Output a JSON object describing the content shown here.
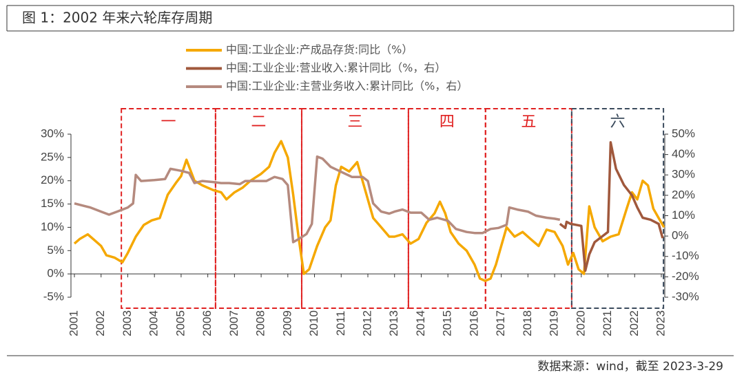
{
  "chart_data": {
    "type": "line",
    "title": "图 1：2002 年来六轮库存周期",
    "source": "数据来源：wind，截至 2023-3-29",
    "xlim": [
      2001,
      2023
    ],
    "xticks": [
      2001,
      2002,
      2003,
      2004,
      2005,
      2006,
      2007,
      2008,
      2009,
      2010,
      2011,
      2012,
      2013,
      2014,
      2015,
      2016,
      2017,
      2018,
      2019,
      2020,
      2021,
      2022,
      2023
    ],
    "ylim": [
      -5,
      30
    ],
    "yticks": [
      {
        "value": -5,
        "label": "-5%"
      },
      {
        "value": 0,
        "label": "0%"
      },
      {
        "value": 5,
        "label": "5%"
      },
      {
        "value": 10,
        "label": "10%"
      },
      {
        "value": 15,
        "label": "15%"
      },
      {
        "value": 20,
        "label": "20%"
      },
      {
        "value": 25,
        "label": "25%"
      },
      {
        "value": 30,
        "label": "30%"
      }
    ],
    "y2lim": [
      -30,
      50
    ],
    "y2ticks": [
      {
        "value": -30,
        "label": "-30%"
      },
      {
        "value": -20,
        "label": "-20%"
      },
      {
        "value": -10,
        "label": "-10%"
      },
      {
        "value": 0,
        "label": "0%"
      },
      {
        "value": 10,
        "label": "10%"
      },
      {
        "value": 20,
        "label": "20%"
      },
      {
        "value": 30,
        "label": "30%"
      },
      {
        "value": 40,
        "label": "40%"
      },
      {
        "value": 50,
        "label": "50%"
      }
    ],
    "cycles": [
      {
        "label": "一",
        "start": 2002.76,
        "end": 2006.29,
        "color": "#e02020"
      },
      {
        "label": "二",
        "start": 2006.29,
        "end": 2009.52,
        "color": "#e02020"
      },
      {
        "label": "三",
        "start": 2009.52,
        "end": 2013.52,
        "color": "#e02020"
      },
      {
        "label": "四",
        "start": 2013.52,
        "end": 2016.41,
        "color": "#e02020"
      },
      {
        "label": "五",
        "start": 2016.41,
        "end": 2019.64,
        "color": "#e02020"
      },
      {
        "label": "六",
        "start": 2019.64,
        "end": 2023.08,
        "color": "#3a4a5c"
      }
    ],
    "series": [
      {
        "name": "中国:工业企业:产成品存货:同比（%）",
        "color": "#f5a800",
        "axis": "y",
        "x": [
          2001.0,
          2001.2,
          2001.5,
          2001.8,
          2002.0,
          2002.2,
          2002.5,
          2002.8,
          2003.0,
          2003.3,
          2003.6,
          2003.9,
          2004.2,
          2004.5,
          2004.8,
          2005.0,
          2005.2,
          2005.5,
          2005.8,
          2006.2,
          2006.5,
          2006.7,
          2007.0,
          2007.3,
          2007.6,
          2008.0,
          2008.3,
          2008.5,
          2008.75,
          2009.0,
          2009.2,
          2009.4,
          2009.6,
          2009.8,
          2010.1,
          2010.4,
          2010.6,
          2010.8,
          2011.0,
          2011.3,
          2011.6,
          2011.9,
          2012.2,
          2012.5,
          2012.8,
          2013.0,
          2013.3,
          2013.6,
          2013.9,
          2014.2,
          2014.5,
          2014.7,
          2014.9,
          2015.1,
          2015.4,
          2015.7,
          2016.0,
          2016.2,
          2016.4,
          2016.6,
          2016.8,
          2017.0,
          2017.2,
          2017.5,
          2017.8,
          2018.1,
          2018.4,
          2018.7,
          2019.0,
          2019.3,
          2019.5,
          2019.7,
          2019.9,
          2020.1,
          2020.3,
          2020.5,
          2020.8,
          2021.1,
          2021.4,
          2021.7,
          2021.9,
          2022.1,
          2022.3,
          2022.5,
          2022.7,
          2022.9,
          2023.1
        ],
        "values": [
          6.5,
          7.5,
          8.5,
          7,
          6,
          4,
          3.5,
          2.5,
          4.5,
          8,
          10.5,
          11.5,
          12,
          17,
          19.5,
          21,
          24.5,
          20,
          19,
          18,
          17.5,
          16,
          17.5,
          18.5,
          20,
          21.5,
          23,
          26,
          28.5,
          25,
          17,
          8,
          0,
          1,
          6,
          10,
          11.5,
          19,
          23,
          22,
          24,
          18,
          12,
          10,
          8,
          8,
          8.5,
          6.5,
          7.5,
          11,
          13,
          15.5,
          13,
          9,
          6.5,
          5,
          2,
          -1,
          -1.5,
          -1,
          2,
          6,
          10,
          8,
          9,
          7.5,
          6,
          9.5,
          9,
          6,
          2,
          4.5,
          1,
          0,
          14.5,
          10,
          7,
          8,
          8.5,
          14,
          17.5,
          16,
          20,
          19,
          14,
          12,
          10
        ]
      },
      {
        "name": "中国:工业企业:营业收入:累计同比（%，右）",
        "color": "#a0583c",
        "axis": "y2",
        "x": [
          2019.2,
          2019.4,
          2019.45,
          2019.6,
          2019.8,
          2020.0,
          2020.15,
          2020.3,
          2020.5,
          2020.8,
          2021.0,
          2021.1,
          2021.3,
          2021.6,
          2021.9,
          2022.1,
          2022.3,
          2022.6,
          2022.9,
          2023.05
        ],
        "values": [
          6,
          4,
          7,
          6,
          5.5,
          5,
          -17,
          -9,
          -3,
          0,
          2,
          46,
          33,
          25,
          20,
          14,
          9,
          8,
          6,
          -1
        ]
      },
      {
        "name": "中国:工业企业:主营业务收入:累计同比（%，右）",
        "color": "#b58a7e",
        "axis": "y2",
        "x": [
          2001.0,
          2001.3,
          2001.6,
          2002.0,
          2002.3,
          2002.6,
          2003.0,
          2003.2,
          2003.3,
          2003.5,
          2004.0,
          2004.4,
          2004.6,
          2005.0,
          2005.3,
          2005.5,
          2005.8,
          2006.2,
          2006.5,
          2006.8,
          2007.2,
          2007.4,
          2007.8,
          2008.2,
          2008.5,
          2008.8,
          2009.0,
          2009.2,
          2009.4,
          2009.7,
          2009.9,
          2010.1,
          2010.3,
          2010.6,
          2011.0,
          2011.4,
          2011.8,
          2012.0,
          2012.2,
          2012.5,
          2012.8,
          2013.0,
          2013.3,
          2013.6,
          2014.0,
          2014.3,
          2014.6,
          2015.0,
          2015.3,
          2015.7,
          2016.0,
          2016.3,
          2016.6,
          2016.9,
          2017.2,
          2017.3,
          2017.6,
          2018.0,
          2018.3,
          2018.7,
          2019.0,
          2019.2
        ],
        "values": [
          16,
          15,
          14,
          12,
          10.5,
          12,
          14,
          16,
          30,
          27,
          27.5,
          28,
          33,
          32,
          31,
          26,
          27,
          26.5,
          26,
          26,
          25.5,
          27,
          27,
          27,
          29,
          28,
          25,
          -3,
          -1.5,
          1,
          6,
          39,
          38,
          34,
          31.5,
          29,
          29,
          27,
          16,
          12,
          11,
          12,
          13,
          11.5,
          11.5,
          8,
          9,
          7.5,
          3.5,
          2,
          1.5,
          1.5,
          3.5,
          4,
          5.5,
          14,
          13,
          12,
          10,
          9,
          8.5,
          8
        ]
      }
    ]
  }
}
